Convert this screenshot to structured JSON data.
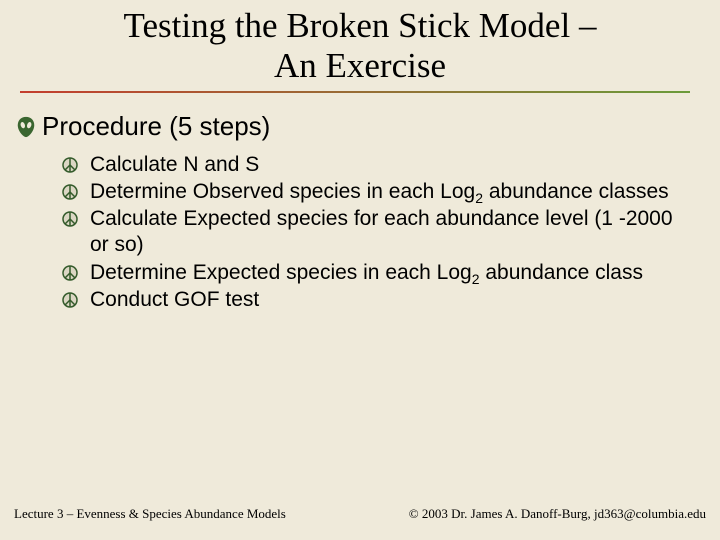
{
  "title_line1": "Testing the Broken Stick Model –",
  "title_line2": "An Exercise",
  "underline_colors": {
    "left": "#c43e2e",
    "right": "#6b9b3a"
  },
  "heading": "Procedure (5 steps)",
  "alien_icon_color": "#3a6630",
  "bullet_color": "#335a2a",
  "bullet_bg": "#dcd7c4",
  "items": [
    {
      "html": "Calculate N and S"
    },
    {
      "html": "Determine Observed species in each Log<span class=\"sub\">2</span> abundance classes"
    },
    {
      "html": "Calculate Expected species for each abundance level (1 -2000 or so)"
    },
    {
      "html": "Determine Expected species in each Log<span class=\"sub\">2</span> abundance class"
    },
    {
      "html": "Conduct GOF test"
    }
  ],
  "footer_left": "Lecture 3 – Evenness & Species Abundance Models",
  "footer_right": "© 2003 Dr. James A. Danoff-Burg, jd363@columbia.edu",
  "background_color": "#efeada",
  "title_fontsize": 35,
  "heading_fontsize": 26,
  "item_fontsize": 21,
  "footer_fontsize": 13
}
